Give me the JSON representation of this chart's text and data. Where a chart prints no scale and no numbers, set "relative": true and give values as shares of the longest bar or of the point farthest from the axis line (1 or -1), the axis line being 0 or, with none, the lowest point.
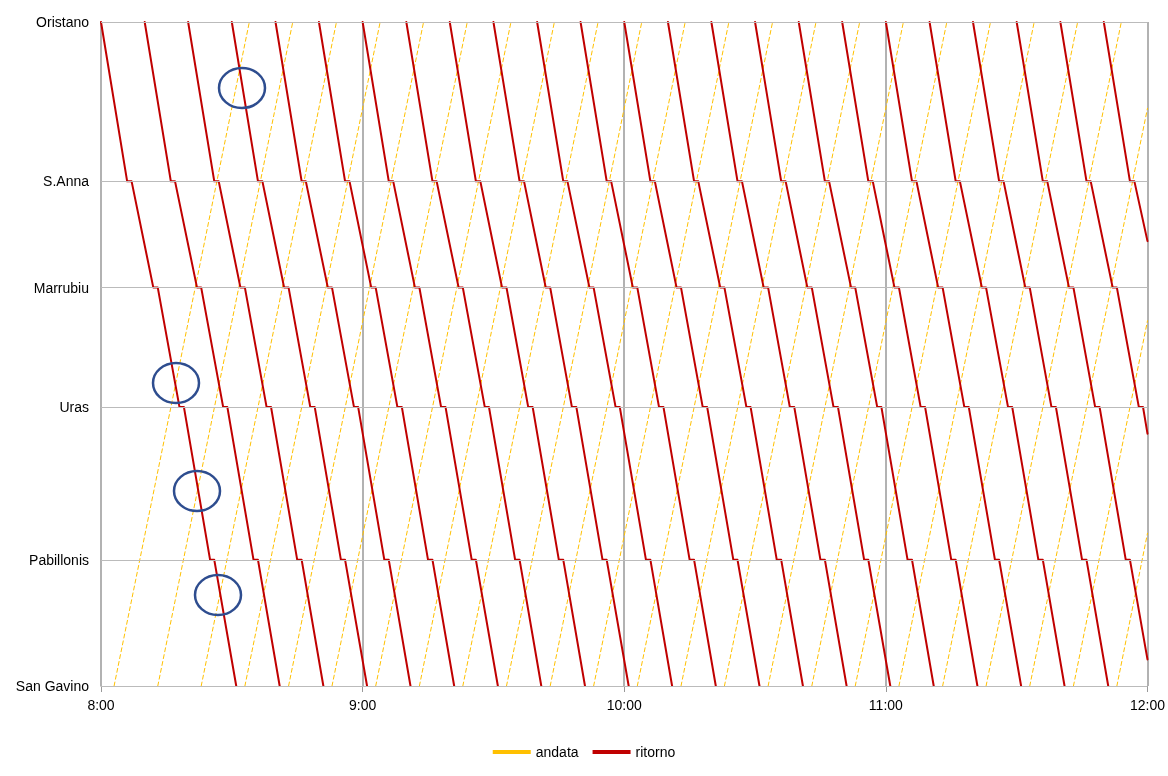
{
  "chart_data": {
    "type": "line",
    "relative": true,
    "xlim": [
      8,
      12
    ],
    "xticks": [
      {
        "value": 8,
        "label": "8:00"
      },
      {
        "value": 9,
        "label": "9:00"
      },
      {
        "value": 10,
        "label": "10:00"
      },
      {
        "value": 11,
        "label": "11:00"
      },
      {
        "value": 12,
        "label": "12:00"
      }
    ],
    "ref_lines": [
      {
        "axis": "y",
        "value": 0,
        "label": "San Gavino",
        "color": "#bbbbbb"
      },
      {
        "axis": "y",
        "value": 0.19,
        "label": "Pabillonis",
        "color": "#bbbbbb"
      },
      {
        "axis": "y",
        "value": 0.42,
        "label": "Uras",
        "color": "#bbbbbb"
      },
      {
        "axis": "y",
        "value": 0.6,
        "label": "Marrubiu",
        "color": "#bbbbbb"
      },
      {
        "axis": "y",
        "value": 0.76,
        "label": "S.Anna",
        "color": "#bbbbbb"
      },
      {
        "axis": "y",
        "value": 1,
        "label": "Oristano",
        "color": "#bbbbbb"
      }
    ],
    "grid": "x",
    "legend": "bottom",
    "marker": "none",
    "series": [
      {
        "name": "andata",
        "color": "#ffc000",
        "line_style": "dashed",
        "x": [
          8.05,
          8.567,
          null,
          8.217,
          8.733,
          null,
          8.383,
          8.9,
          null,
          8.55,
          9.067,
          null,
          8.717,
          9.233,
          null,
          8.883,
          9.4,
          null,
          9.05,
          9.567,
          null,
          9.217,
          9.733,
          null,
          9.383,
          9.9,
          null,
          9.55,
          10.067,
          null,
          9.717,
          10.233,
          null,
          9.883,
          10.4,
          null,
          10.05,
          10.567,
          null,
          10.217,
          10.733,
          null,
          10.383,
          10.9,
          null,
          10.55,
          11.067,
          null,
          10.717,
          11.233,
          null,
          10.883,
          11.4,
          null,
          11.05,
          11.567,
          null,
          11.217,
          11.733,
          null,
          11.383,
          11.9,
          null,
          11.55,
          12,
          null,
          11.717,
          12,
          null,
          11.883,
          12
        ],
        "values": [
          0,
          1,
          null,
          0,
          1,
          null,
          0,
          1,
          null,
          0,
          1,
          null,
          0,
          1,
          null,
          0,
          1,
          null,
          0,
          1,
          null,
          0,
          1,
          null,
          0,
          1,
          null,
          0,
          1,
          null,
          0,
          1,
          null,
          0,
          1,
          null,
          0,
          1,
          null,
          0,
          1,
          null,
          0,
          1,
          null,
          0,
          1,
          null,
          0,
          1,
          null,
          0,
          1,
          null,
          0,
          1,
          null,
          0,
          1,
          null,
          0,
          1,
          null,
          0,
          0.87,
          null,
          0,
          0.55,
          null,
          0,
          0.23
        ]
      },
      {
        "name": "ritorno",
        "color": "#c00000",
        "line_style": "solid",
        "x": [
          8,
          8.1,
          8.117,
          8.2,
          8.217,
          8.3,
          8.317,
          8.417,
          8.433,
          8.517,
          null,
          8.167,
          8.267,
          8.283,
          8.367,
          8.383,
          8.467,
          8.483,
          8.583,
          8.6,
          8.683,
          null,
          8.333,
          8.433,
          8.45,
          8.533,
          8.55,
          8.633,
          8.65,
          8.75,
          8.767,
          8.85,
          null,
          8.5,
          8.6,
          8.617,
          8.7,
          8.717,
          8.8,
          8.817,
          8.917,
          8.933,
          9.017,
          null,
          8.667,
          8.767,
          8.783,
          8.867,
          8.883,
          8.967,
          8.983,
          9.083,
          9.1,
          9.183,
          null,
          8.833,
          8.933,
          8.95,
          9.033,
          9.05,
          9.133,
          9.15,
          9.25,
          9.267,
          9.35,
          null,
          9,
          9.1,
          9.117,
          9.2,
          9.217,
          9.3,
          9.317,
          9.417,
          9.433,
          9.517,
          null,
          9.167,
          9.267,
          9.283,
          9.367,
          9.383,
          9.467,
          9.483,
          9.583,
          9.6,
          9.683,
          null,
          9.333,
          9.433,
          9.45,
          9.533,
          9.55,
          9.633,
          9.65,
          9.75,
          9.767,
          9.85,
          null,
          9.5,
          9.6,
          9.617,
          9.7,
          9.717,
          9.8,
          9.817,
          9.917,
          9.933,
          10.017,
          null,
          9.667,
          9.767,
          9.783,
          9.867,
          9.883,
          9.967,
          9.983,
          10.083,
          10.1,
          10.183,
          null,
          9.833,
          9.933,
          9.95,
          10.033,
          10.05,
          10.133,
          10.15,
          10.25,
          10.267,
          10.35,
          null,
          10,
          10.1,
          10.117,
          10.2,
          10.217,
          10.3,
          10.317,
          10.417,
          10.433,
          10.517,
          null,
          10.167,
          10.267,
          10.283,
          10.367,
          10.383,
          10.467,
          10.483,
          10.583,
          10.6,
          10.683,
          null,
          10.333,
          10.433,
          10.45,
          10.533,
          10.55,
          10.633,
          10.65,
          10.75,
          10.767,
          10.85,
          null,
          10.5,
          10.6,
          10.617,
          10.7,
          10.717,
          10.8,
          10.817,
          10.917,
          10.933,
          11.017,
          null,
          10.667,
          10.767,
          10.783,
          10.867,
          10.883,
          10.967,
          10.983,
          11.083,
          11.1,
          11.183,
          null,
          10.833,
          10.933,
          10.95,
          11.033,
          11.05,
          11.133,
          11.15,
          11.25,
          11.267,
          11.35,
          null,
          11,
          11.1,
          11.117,
          11.2,
          11.217,
          11.3,
          11.317,
          11.417,
          11.433,
          11.517,
          null,
          11.167,
          11.267,
          11.283,
          11.367,
          11.383,
          11.467,
          11.483,
          11.583,
          11.6,
          11.683,
          null,
          11.333,
          11.433,
          11.45,
          11.533,
          11.55,
          11.633,
          11.65,
          11.75,
          11.767,
          11.85,
          null,
          11.5,
          11.6,
          11.617,
          11.7,
          11.717,
          11.8,
          11.817,
          11.917,
          11.933,
          12,
          null,
          11.667,
          11.767,
          11.783,
          11.867,
          11.883,
          11.967,
          11.983,
          12,
          null,
          11.833,
          11.933,
          11.95,
          12
        ],
        "values": [
          1,
          0.76,
          0.76,
          0.6,
          0.6,
          0.42,
          0.42,
          0.19,
          0.19,
          0,
          null,
          1,
          0.76,
          0.76,
          0.6,
          0.6,
          0.42,
          0.42,
          0.19,
          0.19,
          0,
          null,
          1,
          0.76,
          0.76,
          0.6,
          0.6,
          0.42,
          0.42,
          0.19,
          0.19,
          0,
          null,
          1,
          0.76,
          0.76,
          0.6,
          0.6,
          0.42,
          0.42,
          0.19,
          0.19,
          0,
          null,
          1,
          0.76,
          0.76,
          0.6,
          0.6,
          0.42,
          0.42,
          0.19,
          0.19,
          0,
          null,
          1,
          0.76,
          0.76,
          0.6,
          0.6,
          0.42,
          0.42,
          0.19,
          0.19,
          0,
          null,
          1,
          0.76,
          0.76,
          0.6,
          0.6,
          0.42,
          0.42,
          0.19,
          0.19,
          0,
          null,
          1,
          0.76,
          0.76,
          0.6,
          0.6,
          0.42,
          0.42,
          0.19,
          0.19,
          0,
          null,
          1,
          0.76,
          0.76,
          0.6,
          0.6,
          0.42,
          0.42,
          0.19,
          0.19,
          0,
          null,
          1,
          0.76,
          0.76,
          0.6,
          0.6,
          0.42,
          0.42,
          0.19,
          0.19,
          0,
          null,
          1,
          0.76,
          0.76,
          0.6,
          0.6,
          0.42,
          0.42,
          0.19,
          0.19,
          0,
          null,
          1,
          0.76,
          0.76,
          0.6,
          0.6,
          0.42,
          0.42,
          0.19,
          0.19,
          0,
          null,
          1,
          0.76,
          0.76,
          0.6,
          0.6,
          0.42,
          0.42,
          0.19,
          0.19,
          0,
          null,
          1,
          0.76,
          0.76,
          0.6,
          0.6,
          0.42,
          0.42,
          0.19,
          0.19,
          0,
          null,
          1,
          0.76,
          0.76,
          0.6,
          0.6,
          0.42,
          0.42,
          0.19,
          0.19,
          0,
          null,
          1,
          0.76,
          0.76,
          0.6,
          0.6,
          0.42,
          0.42,
          0.19,
          0.19,
          0,
          null,
          1,
          0.76,
          0.76,
          0.6,
          0.6,
          0.42,
          0.42,
          0.19,
          0.19,
          0,
          null,
          1,
          0.76,
          0.76,
          0.6,
          0.6,
          0.42,
          0.42,
          0.19,
          0.19,
          0,
          null,
          1,
          0.76,
          0.76,
          0.6,
          0.6,
          0.42,
          0.42,
          0.19,
          0.19,
          0,
          null,
          1,
          0.76,
          0.76,
          0.6,
          0.6,
          0.42,
          0.42,
          0.19,
          0.19,
          0,
          null,
          1,
          0.76,
          0.76,
          0.6,
          0.6,
          0.42,
          0.42,
          0.19,
          0.19,
          0,
          null,
          1,
          0.76,
          0.76,
          0.6,
          0.6,
          0.42,
          0.42,
          0.19,
          0.19,
          0.04,
          null,
          1,
          0.76,
          0.76,
          0.6,
          0.6,
          0.42,
          0.42,
          0.38,
          null,
          1,
          0.76,
          0.76,
          0.67
        ]
      }
    ]
  }
}
